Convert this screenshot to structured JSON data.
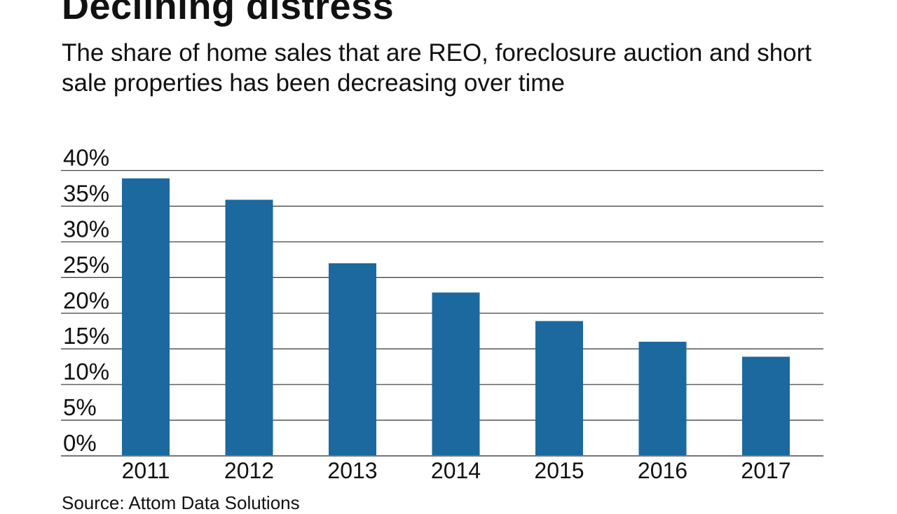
{
  "chart_data": {
    "type": "bar",
    "title": "Declining distress",
    "subtitle": "The share of home sales that are REO, foreclosure auction and short sale properties has been decreasing over time",
    "categories": [
      "2011",
      "2012",
      "2013",
      "2014",
      "2015",
      "2016",
      "2017"
    ],
    "values": [
      38.9,
      35.9,
      27.0,
      22.9,
      18.9,
      16.0,
      13.9
    ],
    "ylim": [
      0,
      40
    ],
    "yticks": [
      0,
      5,
      10,
      15,
      20,
      25,
      30,
      35,
      40
    ],
    "ytick_labels": [
      "0%",
      "5%",
      "10%",
      "15%",
      "20%",
      "25%",
      "30%",
      "35%",
      "40%"
    ],
    "xlabel": "",
    "ylabel": "",
    "grid": true,
    "bar_color": "#1b699f",
    "source": "Source: Attom Data Solutions"
  }
}
